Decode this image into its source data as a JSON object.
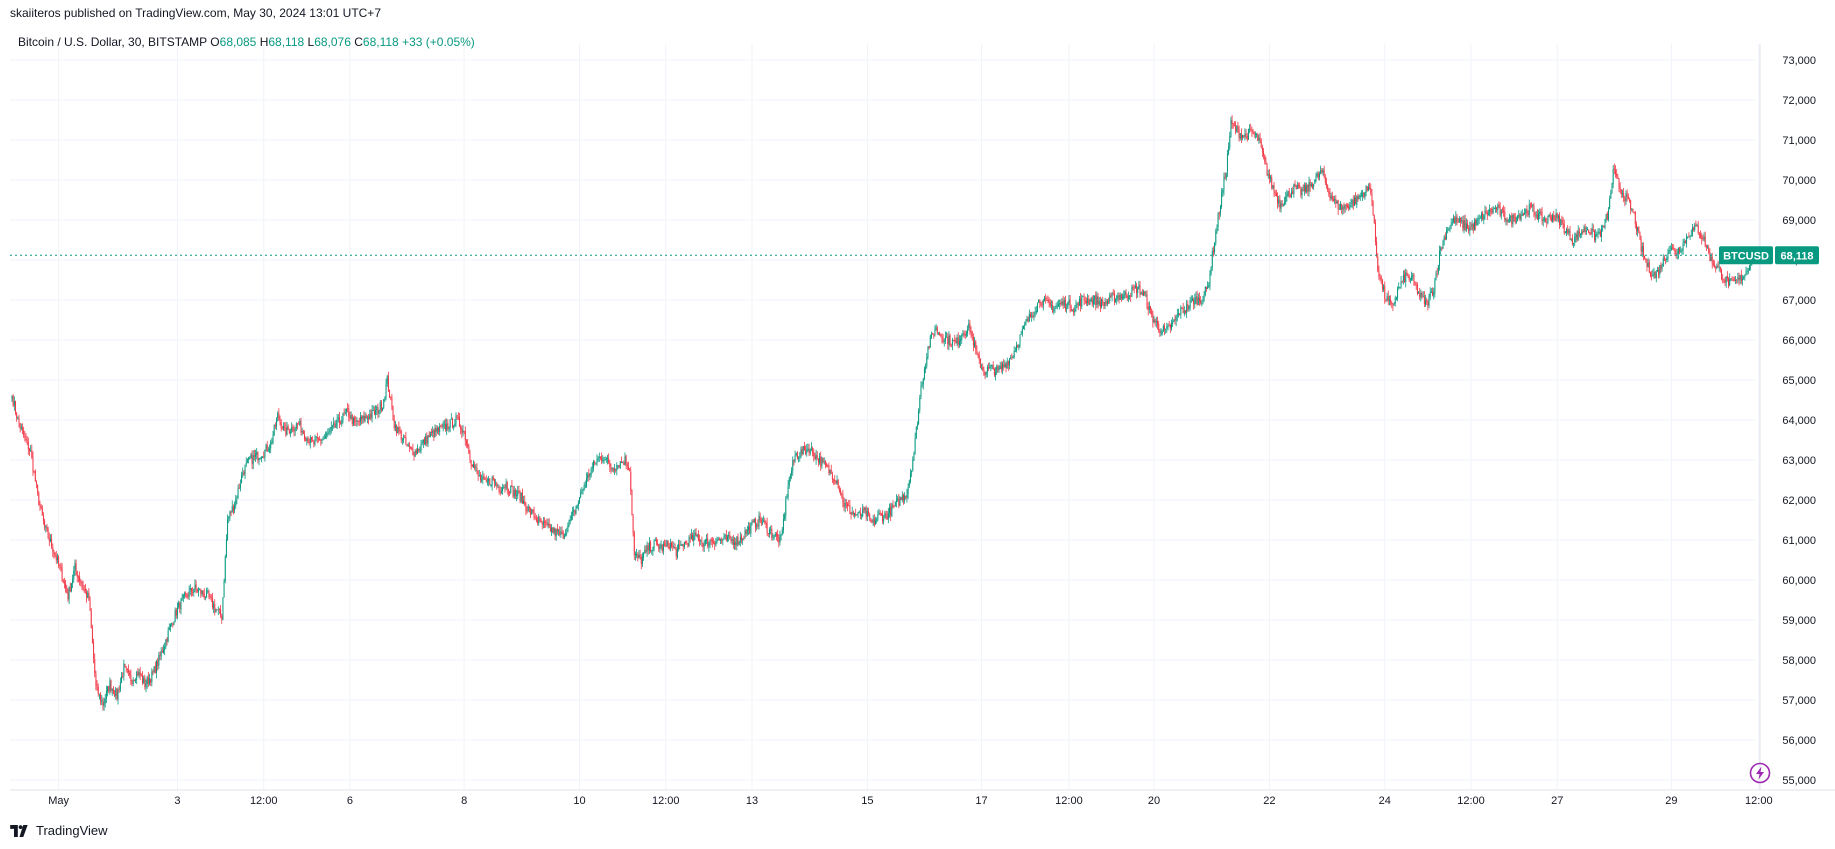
{
  "publisher": {
    "text": "skaiiteros published on TradingView.com, May 30, 2024 13:01 UTC+7"
  },
  "legend": {
    "symbol": "Bitcoin / U.S. Dollar, 30, BITSTAMP",
    "open_key": "O",
    "open": "68,085",
    "high_key": "H",
    "high": "68,118",
    "low_key": "L",
    "low": "68,076",
    "close_key": "C",
    "close": "68,118",
    "change": "+33 (+0.05%)"
  },
  "price_tag": {
    "symbol": "BTCUSD",
    "value": "68,118"
  },
  "footer": {
    "brand": "TradingView"
  },
  "colors": {
    "up": "#089981",
    "down": "#f23645",
    "grid": "#f0f3fa",
    "axis_text": "#131722",
    "price_line": "#089981",
    "flash_icon": "#9c27b0"
  },
  "icons": {
    "brand_logo": "tradingview-logo-icon",
    "alerts": "lightning-icon"
  },
  "chart_data": {
    "type": "candlestick",
    "interval": "30",
    "exchange": "BITSTAMP",
    "y_axis": {
      "range": [
        55000,
        73000
      ],
      "ticks": [
        73000,
        72000,
        71000,
        70000,
        69000,
        68000,
        67000,
        66000,
        65000,
        64000,
        63000,
        62000,
        61000,
        60000,
        59000,
        58000,
        57000,
        56000,
        55000
      ],
      "tick_labels": [
        "73,000",
        "72,000",
        "71,000",
        "70,000",
        "69,000",
        "68,000",
        "67,000",
        "66,000",
        "65,000",
        "64,000",
        "63,000",
        "62,000",
        "61,000",
        "60,000",
        "59,000",
        "58,000",
        "57,000",
        "56,000",
        "55,000"
      ],
      "side": "right"
    },
    "x_axis": {
      "ticks": [
        {
          "label": "May",
          "bar": 40
        },
        {
          "label": "3",
          "bar": 142
        },
        {
          "label": "12:00",
          "bar": 216
        },
        {
          "label": "6",
          "bar": 290
        },
        {
          "label": "8",
          "bar": 388
        },
        {
          "label": "10",
          "bar": 487
        },
        {
          "label": "12:00",
          "bar": 561
        },
        {
          "label": "13",
          "bar": 635
        },
        {
          "label": "15",
          "bar": 734
        },
        {
          "label": "17",
          "bar": 832
        },
        {
          "label": "12:00",
          "bar": 907
        },
        {
          "label": "20",
          "bar": 980
        },
        {
          "label": "22",
          "bar": 1079
        },
        {
          "label": "24",
          "bar": 1178
        },
        {
          "label": "12:00",
          "bar": 1252
        },
        {
          "label": "27",
          "bar": 1326
        },
        {
          "label": "29",
          "bar": 1424
        },
        {
          "label": "12:00",
          "bar": 1499
        }
      ]
    },
    "last_close": 68118,
    "grid": true,
    "waypoints": [
      [
        0,
        64600
      ],
      [
        5,
        64000
      ],
      [
        10,
        63600
      ],
      [
        16,
        63200
      ],
      [
        22,
        62100
      ],
      [
        28,
        61300
      ],
      [
        35,
        60800
      ],
      [
        42,
        60200
      ],
      [
        48,
        59600
      ],
      [
        54,
        60300
      ],
      [
        60,
        59900
      ],
      [
        66,
        59500
      ],
      [
        72,
        57300
      ],
      [
        78,
        56900
      ],
      [
        84,
        57400
      ],
      [
        90,
        57100
      ],
      [
        96,
        57800
      ],
      [
        102,
        57500
      ],
      [
        108,
        57700
      ],
      [
        114,
        57400
      ],
      [
        120,
        57600
      ],
      [
        126,
        58000
      ],
      [
        132,
        58500
      ],
      [
        138,
        59000
      ],
      [
        144,
        59400
      ],
      [
        150,
        59600
      ],
      [
        156,
        59800
      ],
      [
        162,
        59700
      ],
      [
        168,
        59600
      ],
      [
        174,
        59300
      ],
      [
        180,
        59100
      ],
      [
        185,
        61500
      ],
      [
        192,
        62000
      ],
      [
        198,
        62700
      ],
      [
        204,
        63000
      ],
      [
        210,
        63100
      ],
      [
        216,
        63200
      ],
      [
        222,
        63400
      ],
      [
        228,
        64100
      ],
      [
        234,
        63700
      ],
      [
        240,
        63800
      ],
      [
        246,
        63900
      ],
      [
        252,
        63600
      ],
      [
        258,
        63400
      ],
      [
        264,
        63500
      ],
      [
        270,
        63600
      ],
      [
        276,
        63800
      ],
      [
        282,
        64000
      ],
      [
        288,
        64200
      ],
      [
        294,
        63900
      ],
      [
        300,
        64000
      ],
      [
        306,
        64100
      ],
      [
        312,
        64200
      ],
      [
        318,
        64400
      ],
      [
        322,
        65000
      ],
      [
        328,
        63900
      ],
      [
        334,
        63600
      ],
      [
        340,
        63300
      ],
      [
        346,
        63200
      ],
      [
        352,
        63400
      ],
      [
        358,
        63600
      ],
      [
        364,
        63700
      ],
      [
        370,
        63800
      ],
      [
        376,
        63900
      ],
      [
        382,
        64000
      ],
      [
        388,
        63700
      ],
      [
        394,
        63000
      ],
      [
        400,
        62600
      ],
      [
        406,
        62400
      ],
      [
        412,
        62500
      ],
      [
        418,
        62300
      ],
      [
        424,
        62400
      ],
      [
        430,
        62200
      ],
      [
        436,
        62100
      ],
      [
        442,
        61800
      ],
      [
        448,
        61600
      ],
      [
        454,
        61400
      ],
      [
        460,
        61300
      ],
      [
        466,
        61200
      ],
      [
        472,
        61100
      ],
      [
        478,
        61400
      ],
      [
        484,
        61800
      ],
      [
        490,
        62300
      ],
      [
        496,
        62700
      ],
      [
        502,
        63000
      ],
      [
        508,
        63100
      ],
      [
        514,
        62800
      ],
      [
        520,
        62900
      ],
      [
        526,
        63000
      ],
      [
        530,
        62800
      ],
      [
        534,
        60600
      ],
      [
        540,
        60500
      ],
      [
        546,
        60800
      ],
      [
        552,
        60900
      ],
      [
        558,
        60800
      ],
      [
        564,
        60900
      ],
      [
        570,
        60700
      ],
      [
        576,
        60900
      ],
      [
        582,
        61000
      ],
      [
        588,
        61100
      ],
      [
        594,
        60900
      ],
      [
        600,
        61000
      ],
      [
        606,
        61000
      ],
      [
        612,
        61000
      ],
      [
        618,
        61000
      ],
      [
        624,
        61000
      ],
      [
        630,
        61200
      ],
      [
        636,
        61400
      ],
      [
        642,
        61500
      ],
      [
        648,
        61300
      ],
      [
        654,
        61100
      ],
      [
        660,
        61000
      ],
      [
        666,
        62400
      ],
      [
        672,
        63100
      ],
      [
        678,
        63200
      ],
      [
        684,
        63300
      ],
      [
        690,
        63100
      ],
      [
        696,
        62900
      ],
      [
        702,
        62700
      ],
      [
        708,
        62500
      ],
      [
        714,
        61900
      ],
      [
        720,
        61700
      ],
      [
        726,
        61600
      ],
      [
        732,
        61700
      ],
      [
        738,
        61400
      ],
      [
        744,
        61600
      ],
      [
        750,
        61600
      ],
      [
        756,
        61800
      ],
      [
        762,
        62000
      ],
      [
        768,
        62200
      ],
      [
        774,
        63200
      ],
      [
        780,
        64800
      ],
      [
        786,
        65800
      ],
      [
        792,
        66300
      ],
      [
        798,
        66100
      ],
      [
        804,
        66000
      ],
      [
        810,
        65900
      ],
      [
        816,
        66200
      ],
      [
        822,
        66300
      ],
      [
        828,
        65600
      ],
      [
        834,
        65200
      ],
      [
        840,
        65300
      ],
      [
        846,
        65200
      ],
      [
        852,
        65400
      ],
      [
        858,
        65600
      ],
      [
        864,
        66000
      ],
      [
        870,
        66400
      ],
      [
        876,
        66700
      ],
      [
        882,
        67000
      ],
      [
        888,
        66900
      ],
      [
        894,
        66800
      ],
      [
        900,
        66900
      ],
      [
        906,
        66900
      ],
      [
        912,
        66800
      ],
      [
        918,
        67000
      ],
      [
        924,
        67000
      ],
      [
        930,
        67000
      ],
      [
        936,
        66900
      ],
      [
        942,
        67000
      ],
      [
        948,
        67100
      ],
      [
        954,
        67100
      ],
      [
        960,
        67200
      ],
      [
        966,
        67300
      ],
      [
        972,
        67100
      ],
      [
        978,
        66600
      ],
      [
        984,
        66300
      ],
      [
        990,
        66200
      ],
      [
        996,
        66400
      ],
      [
        1002,
        66700
      ],
      [
        1008,
        66800
      ],
      [
        1014,
        67000
      ],
      [
        1020,
        67000
      ],
      [
        1026,
        67300
      ],
      [
        1032,
        68500
      ],
      [
        1038,
        69600
      ],
      [
        1042,
        70300
      ],
      [
        1046,
        71400
      ],
      [
        1052,
        71200
      ],
      [
        1058,
        71100
      ],
      [
        1064,
        71200
      ],
      [
        1070,
        71000
      ],
      [
        1076,
        70300
      ],
      [
        1082,
        69800
      ],
      [
        1088,
        69400
      ],
      [
        1094,
        69600
      ],
      [
        1100,
        69800
      ],
      [
        1106,
        69700
      ],
      [
        1112,
        69800
      ],
      [
        1118,
        70000
      ],
      [
        1124,
        70200
      ],
      [
        1130,
        69700
      ],
      [
        1136,
        69400
      ],
      [
        1142,
        69300
      ],
      [
        1148,
        69400
      ],
      [
        1154,
        69500
      ],
      [
        1160,
        69700
      ],
      [
        1166,
        69800
      ],
      [
        1172,
        67800
      ],
      [
        1178,
        67100
      ],
      [
        1184,
        66800
      ],
      [
        1190,
        67300
      ],
      [
        1196,
        67600
      ],
      [
        1202,
        67500
      ],
      [
        1208,
        67100
      ],
      [
        1214,
        66900
      ],
      [
        1220,
        67300
      ],
      [
        1226,
        68300
      ],
      [
        1232,
        68800
      ],
      [
        1238,
        69000
      ],
      [
        1244,
        68900
      ],
      [
        1250,
        68800
      ],
      [
        1256,
        68900
      ],
      [
        1262,
        69100
      ],
      [
        1268,
        69200
      ],
      [
        1274,
        69300
      ],
      [
        1280,
        69100
      ],
      [
        1286,
        69000
      ],
      [
        1292,
        69100
      ],
      [
        1298,
        69200
      ],
      [
        1304,
        69300
      ],
      [
        1310,
        69100
      ],
      [
        1316,
        69000
      ],
      [
        1322,
        69100
      ],
      [
        1328,
        69000
      ],
      [
        1334,
        68700
      ],
      [
        1340,
        68500
      ],
      [
        1346,
        68700
      ],
      [
        1352,
        68800
      ],
      [
        1358,
        68600
      ],
      [
        1364,
        68700
      ],
      [
        1370,
        69200
      ],
      [
        1374,
        70200
      ],
      [
        1380,
        69800
      ],
      [
        1386,
        69500
      ],
      [
        1392,
        69100
      ],
      [
        1398,
        68300
      ],
      [
        1404,
        67800
      ],
      [
        1410,
        67600
      ],
      [
        1416,
        67900
      ],
      [
        1422,
        68300
      ],
      [
        1428,
        68200
      ],
      [
        1434,
        68400
      ],
      [
        1440,
        68700
      ],
      [
        1446,
        68800
      ],
      [
        1452,
        68500
      ],
      [
        1458,
        68000
      ],
      [
        1464,
        67800
      ],
      [
        1470,
        67500
      ],
      [
        1476,
        67400
      ],
      [
        1482,
        67500
      ],
      [
        1488,
        67700
      ],
      [
        1494,
        68118
      ]
    ]
  }
}
